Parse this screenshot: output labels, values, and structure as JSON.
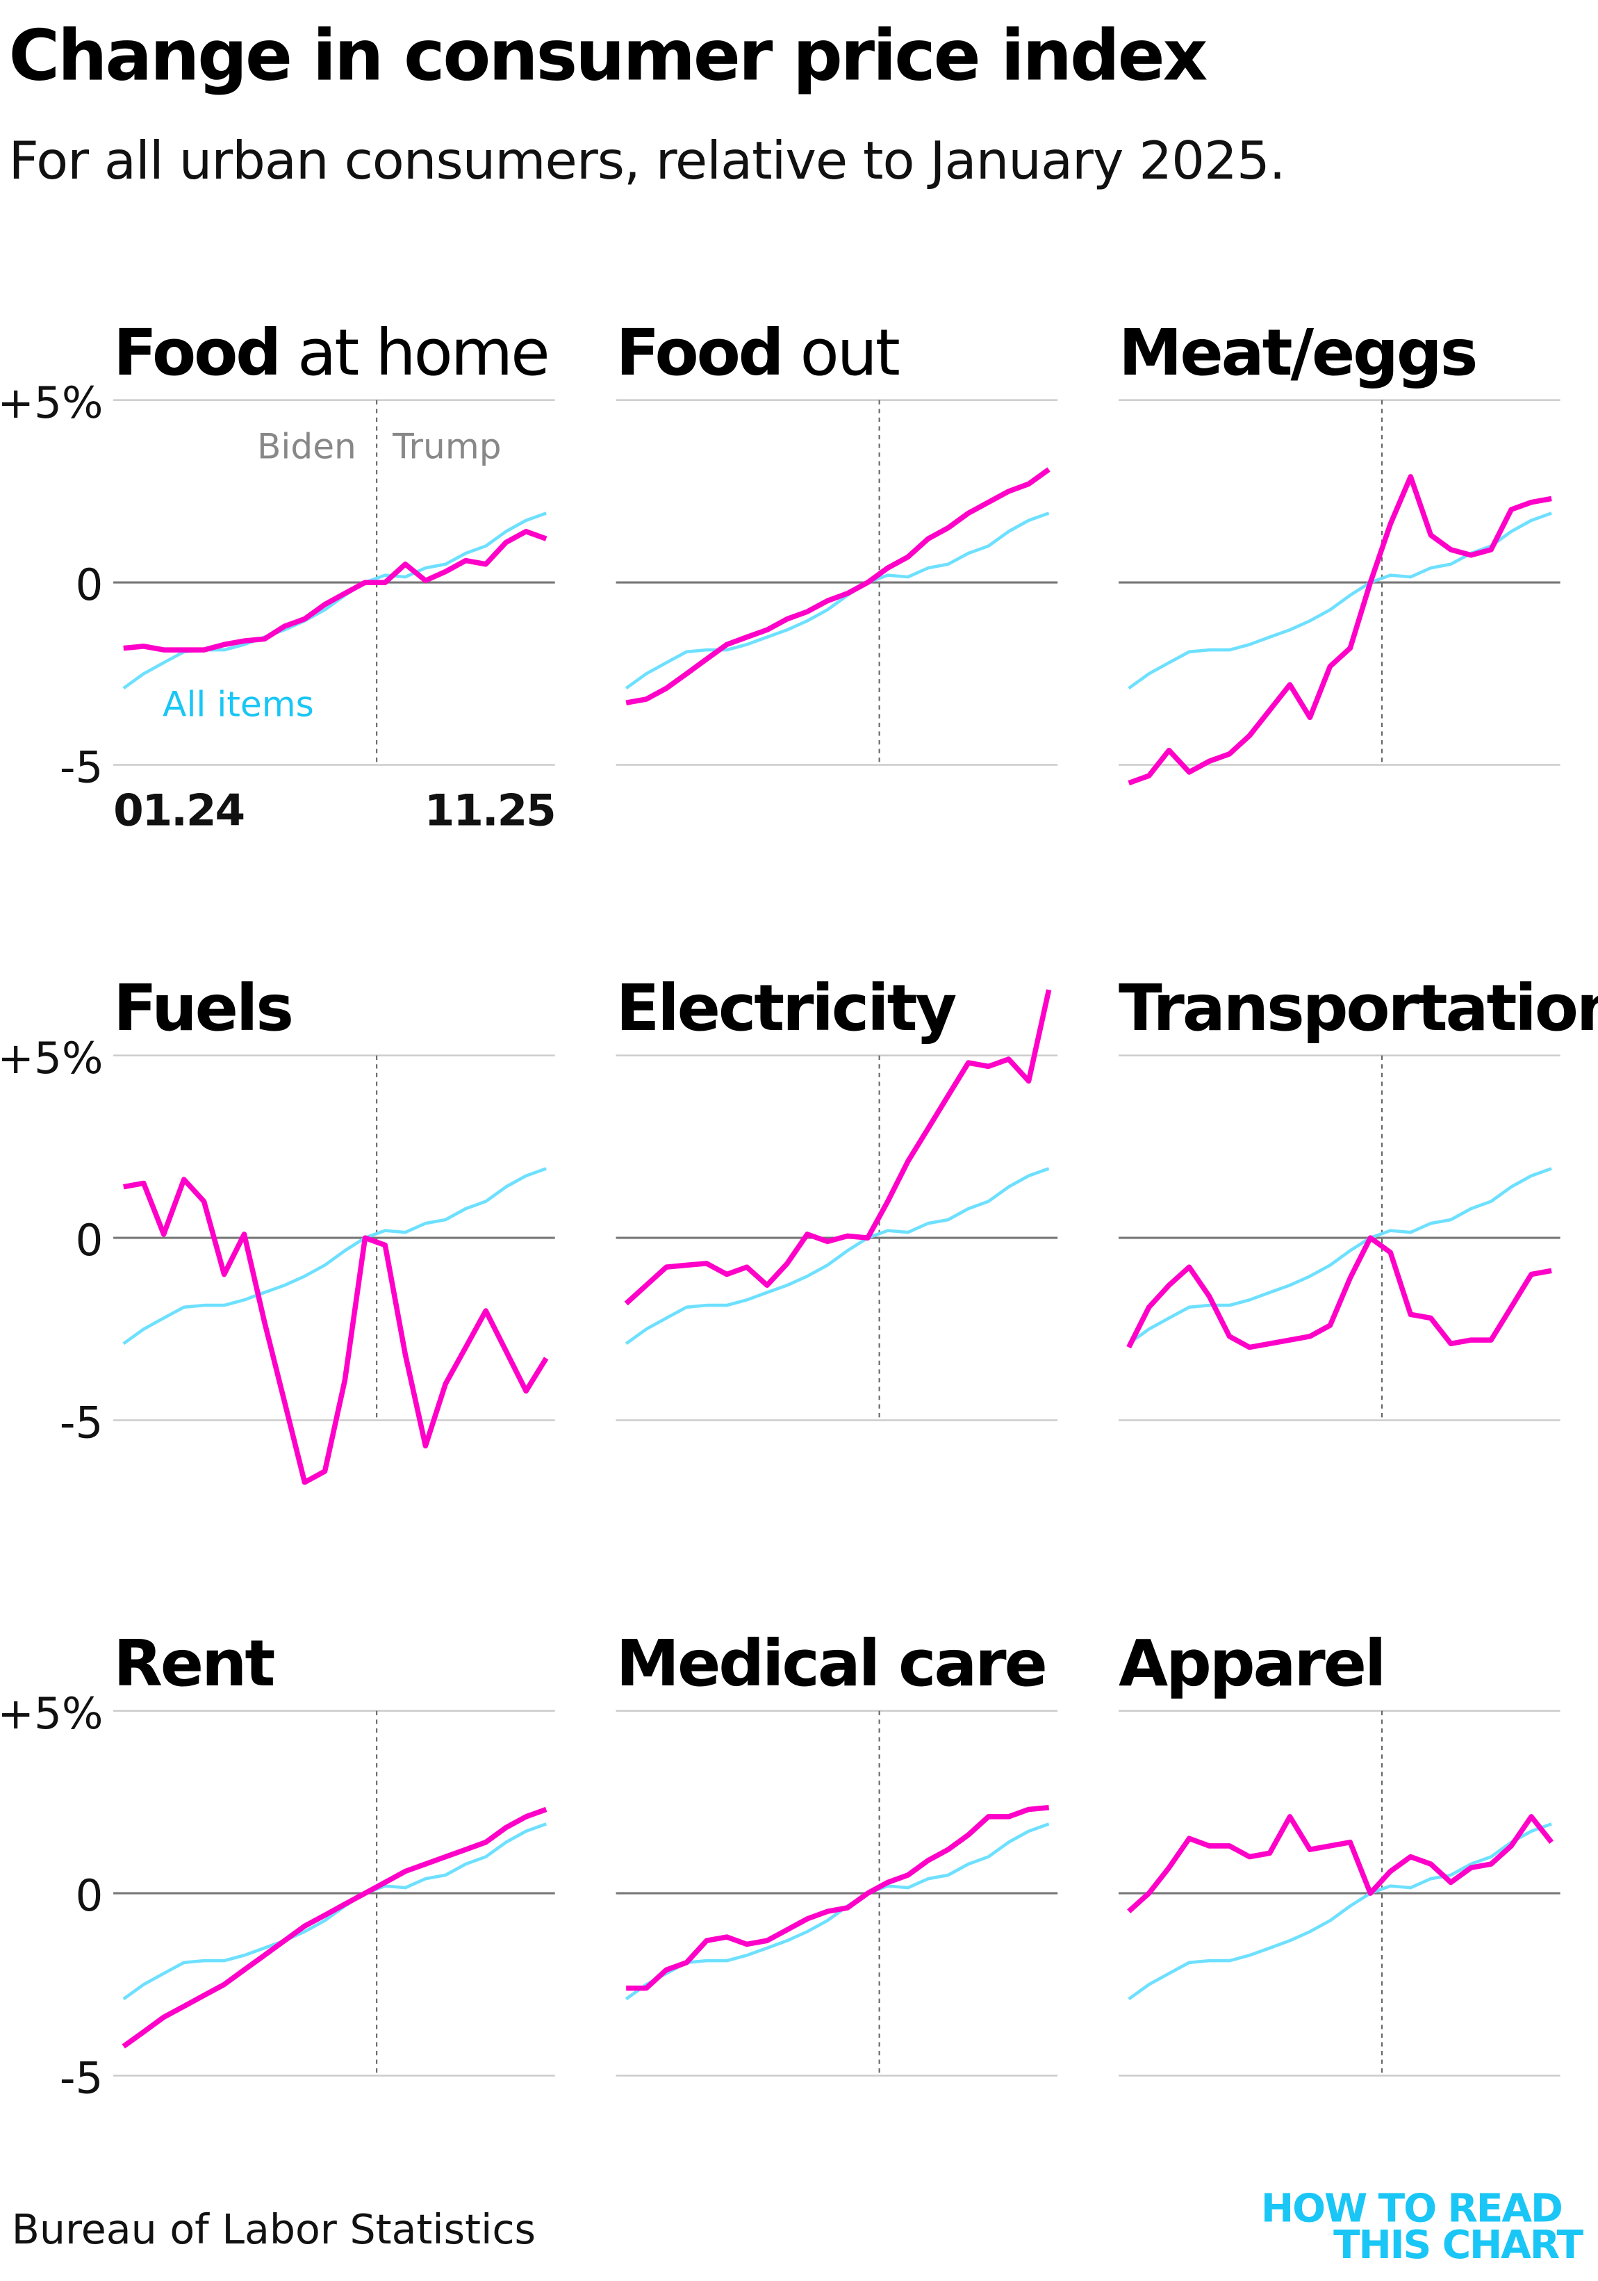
{
  "title": "Change in consumer price index",
  "subtitle": "For all urban consumers, relative to January 2025.",
  "source": "Bureau of Labor Statistics",
  "logo": {
    "line1": "HOW TO READ",
    "line2": "THIS CHART"
  },
  "colors": {
    "category": "#ff00c8",
    "all_items": "#6ee0ff",
    "all_items_label": "#19c6f5",
    "grid": "#cccccc",
    "zero": "#777777",
    "divider": "#666666"
  },
  "chart_data": {
    "type": "line",
    "layout": "small-multiples 3x3",
    "x_labels": {
      "start": "01.24",
      "end": "11.25"
    },
    "y_ticks": [
      {
        "value": 5,
        "label": "+5%"
      },
      {
        "value": 0,
        "label": "0"
      },
      {
        "value": -5,
        "label": "-5"
      }
    ],
    "ylim": [
      -5,
      5
    ],
    "grid": true,
    "divider": {
      "at_index": 12,
      "left_label": "Biden",
      "right_label": "Trump"
    },
    "all_items": {
      "name": "All items",
      "values": [
        -2.9,
        -2.5,
        -2.2,
        -1.9,
        -1.85,
        -1.85,
        -1.7,
        -1.5,
        -1.3,
        -1.05,
        -0.75,
        -0.35,
        0,
        0.2,
        0.15,
        0.4,
        0.5,
        0.8,
        1.0,
        1.4,
        1.7,
        1.9
      ]
    },
    "panels": [
      {
        "title_bold": "Food",
        "title_rest": " at home",
        "values": [
          -1.8,
          -1.75,
          -1.85,
          -1.85,
          -1.85,
          -1.7,
          -1.6,
          -1.55,
          -1.2,
          -1.0,
          -0.6,
          -0.3,
          0,
          0,
          0.5,
          0.05,
          0.3,
          0.6,
          0.5,
          1.1,
          1.4,
          1.2
        ]
      },
      {
        "title_bold": "Food",
        "title_rest": " out",
        "values": [
          -3.3,
          -3.2,
          -2.9,
          -2.5,
          -2.1,
          -1.7,
          -1.5,
          -1.3,
          -1.0,
          -0.8,
          -0.5,
          -0.3,
          0,
          0.4,
          0.7,
          1.2,
          1.5,
          1.9,
          2.2,
          2.5,
          2.7,
          3.1
        ]
      },
      {
        "title_bold": "Meat/eggs",
        "title_rest": "",
        "values": [
          -5.5,
          -5.3,
          -4.6,
          -5.2,
          -4.9,
          -4.7,
          -4.2,
          -3.5,
          -2.8,
          -3.7,
          -2.3,
          -1.8,
          0,
          1.6,
          2.9,
          1.3,
          0.9,
          0.75,
          0.9,
          2.0,
          2.2,
          2.3
        ]
      },
      {
        "title_bold": "Fuels",
        "title_rest": "",
        "values": [
          1.4,
          1.5,
          0.1,
          1.6,
          1.0,
          -1.0,
          0.1,
          -2.3,
          -4.5,
          -6.7,
          -6.4,
          -3.9,
          0,
          -0.2,
          -3.2,
          -5.7,
          -4.0,
          -3.0,
          -2.0,
          -3.1,
          -4.2,
          -3.3
        ]
      },
      {
        "title_bold": "Electricity",
        "title_rest": "",
        "values": [
          -1.8,
          -1.3,
          -0.8,
          -0.75,
          -0.7,
          -1.0,
          -0.8,
          -1.3,
          -0.7,
          0.1,
          -0.1,
          0.05,
          0,
          1.0,
          2.1,
          3.0,
          3.9,
          4.8,
          4.7,
          4.9,
          4.3,
          6.8
        ]
      },
      {
        "title_bold": "Transportation",
        "title_rest": "",
        "values": [
          -3.0,
          -1.9,
          -1.3,
          -0.8,
          -1.6,
          -2.7,
          -3.0,
          -2.9,
          -2.8,
          -2.7,
          -2.4,
          -1.1,
          0,
          -0.4,
          -2.1,
          -2.2,
          -2.9,
          -2.8,
          -2.8,
          -1.9,
          -1.0,
          -0.9
        ]
      },
      {
        "title_bold": "Rent",
        "title_rest": "",
        "values": [
          -4.2,
          -3.8,
          -3.4,
          -3.1,
          -2.8,
          -2.5,
          -2.1,
          -1.7,
          -1.3,
          -0.9,
          -0.6,
          -0.3,
          0,
          0.3,
          0.6,
          0.8,
          1.0,
          1.2,
          1.4,
          1.8,
          2.1,
          2.3
        ]
      },
      {
        "title_bold": "Medical care",
        "title_rest": "",
        "values": [
          -2.6,
          -2.6,
          -2.1,
          -1.9,
          -1.3,
          -1.2,
          -1.4,
          -1.3,
          -1.0,
          -0.7,
          -0.5,
          -0.4,
          0,
          0.3,
          0.5,
          0.9,
          1.2,
          1.6,
          2.1,
          2.1,
          2.3,
          2.35
        ]
      },
      {
        "title_bold": "Apparel",
        "title_rest": "",
        "values": [
          -0.5,
          0,
          0.7,
          1.5,
          1.3,
          1.3,
          1.0,
          1.1,
          2.1,
          1.2,
          1.3,
          1.4,
          0,
          0.6,
          1.0,
          0.8,
          0.3,
          0.7,
          0.8,
          1.3,
          2.1,
          1.4
        ]
      }
    ]
  }
}
